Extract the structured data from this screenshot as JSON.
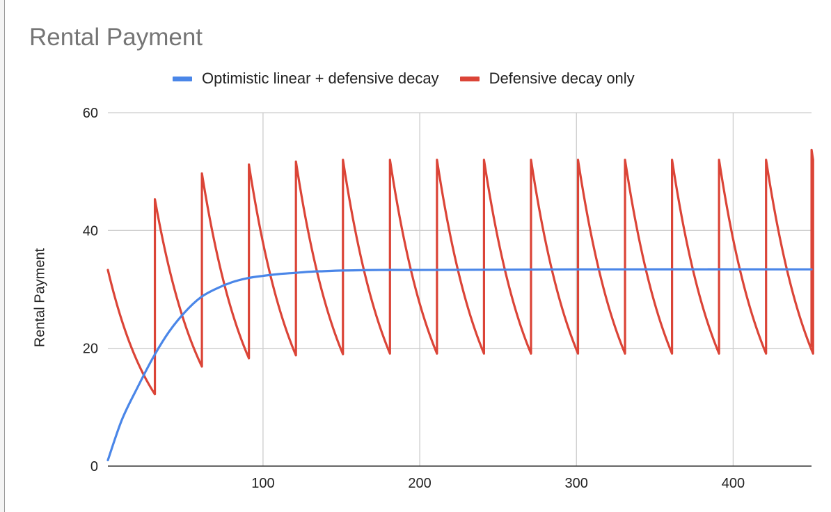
{
  "chart_data": {
    "type": "line",
    "title": "Rental Payment",
    "xlabel": "",
    "ylabel": "Rental Payment",
    "xlim": [
      1,
      450
    ],
    "ylim": [
      0,
      60
    ],
    "x_ticks": [
      100,
      200,
      300,
      400
    ],
    "y_ticks": [
      0,
      20,
      40,
      60
    ],
    "grid": true,
    "legend_position": "top",
    "series": [
      {
        "name": "Optimistic linear + defensive decay",
        "color": "#4a86e8",
        "points": [
          [
            1,
            1
          ],
          [
            10,
            7.9
          ],
          [
            20,
            13.4
          ],
          [
            30,
            18.5
          ],
          [
            40,
            22.8
          ],
          [
            50,
            26.1
          ],
          [
            60,
            28.6
          ],
          [
            70,
            30.1
          ],
          [
            80,
            31.2
          ],
          [
            90,
            31.9
          ],
          [
            100,
            32.3
          ],
          [
            110,
            32.6
          ],
          [
            120,
            32.8
          ],
          [
            130,
            33
          ],
          [
            140,
            33.1
          ],
          [
            150,
            33.2
          ],
          [
            175,
            33.3
          ],
          [
            200,
            33.3
          ],
          [
            300,
            33.4
          ],
          [
            450,
            33.4
          ]
        ]
      },
      {
        "name": "Defensive decay only",
        "color": "#db4437",
        "period": 30,
        "x_start": 1,
        "y_start": 33.3,
        "x_end": 450,
        "peaks": [
          33.3,
          45.3,
          49.7,
          51.2,
          51.7,
          52,
          52,
          52,
          52,
          52,
          52,
          52,
          52,
          52,
          52,
          52
        ],
        "troughs": [
          12.2,
          16.9,
          18.3,
          18.8,
          19,
          19.1,
          19.1,
          19.1,
          19.1,
          19.1,
          19.1,
          19.1,
          19.1,
          19.1,
          19.1
        ],
        "end_value": 20.4
      }
    ]
  }
}
